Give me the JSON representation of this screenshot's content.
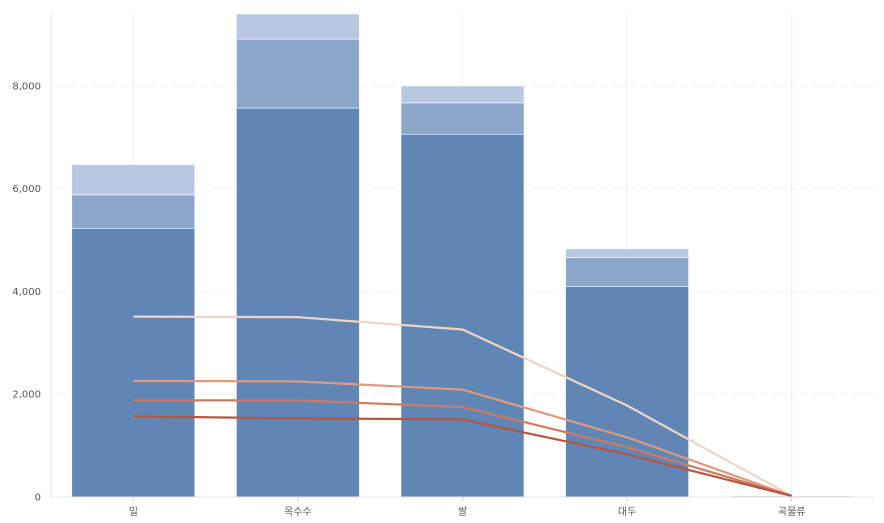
{
  "chart_data": {
    "type": "bar",
    "categories": [
      "밀",
      "옥수수",
      "쌀",
      "대두",
      "곡물류"
    ],
    "ylim": [
      0,
      9400
    ],
    "yticks": [
      0,
      2000,
      4000,
      6000,
      8000
    ],
    "ytick_labels": [
      "0",
      "2,000",
      "4,000",
      "6,000",
      "8,000"
    ],
    "grid": true,
    "legend": "none",
    "bar_series": [
      {
        "values": [
          5230,
          7570,
          7060,
          4100,
          0
        ],
        "color": "#5f86b5"
      },
      {
        "values": [
          650,
          1340,
          610,
          560,
          0
        ],
        "color": "#8da7cb"
      },
      {
        "values": [
          590,
          500,
          330,
          170,
          0
        ],
        "color": "#b8c8e0"
      }
    ],
    "line_series": [
      {
        "values": [
          3510,
          3500,
          3260,
          1780,
          20
        ],
        "color": "#f0d4c8"
      },
      {
        "values": [
          2260,
          2250,
          2090,
          1160,
          20
        ],
        "color": "#dd9a80"
      },
      {
        "values": [
          1880,
          1880,
          1750,
          970,
          20
        ],
        "color": "#cf7a60"
      },
      {
        "values": [
          1570,
          1530,
          1510,
          830,
          20
        ],
        "color": "#b85540"
      }
    ]
  }
}
